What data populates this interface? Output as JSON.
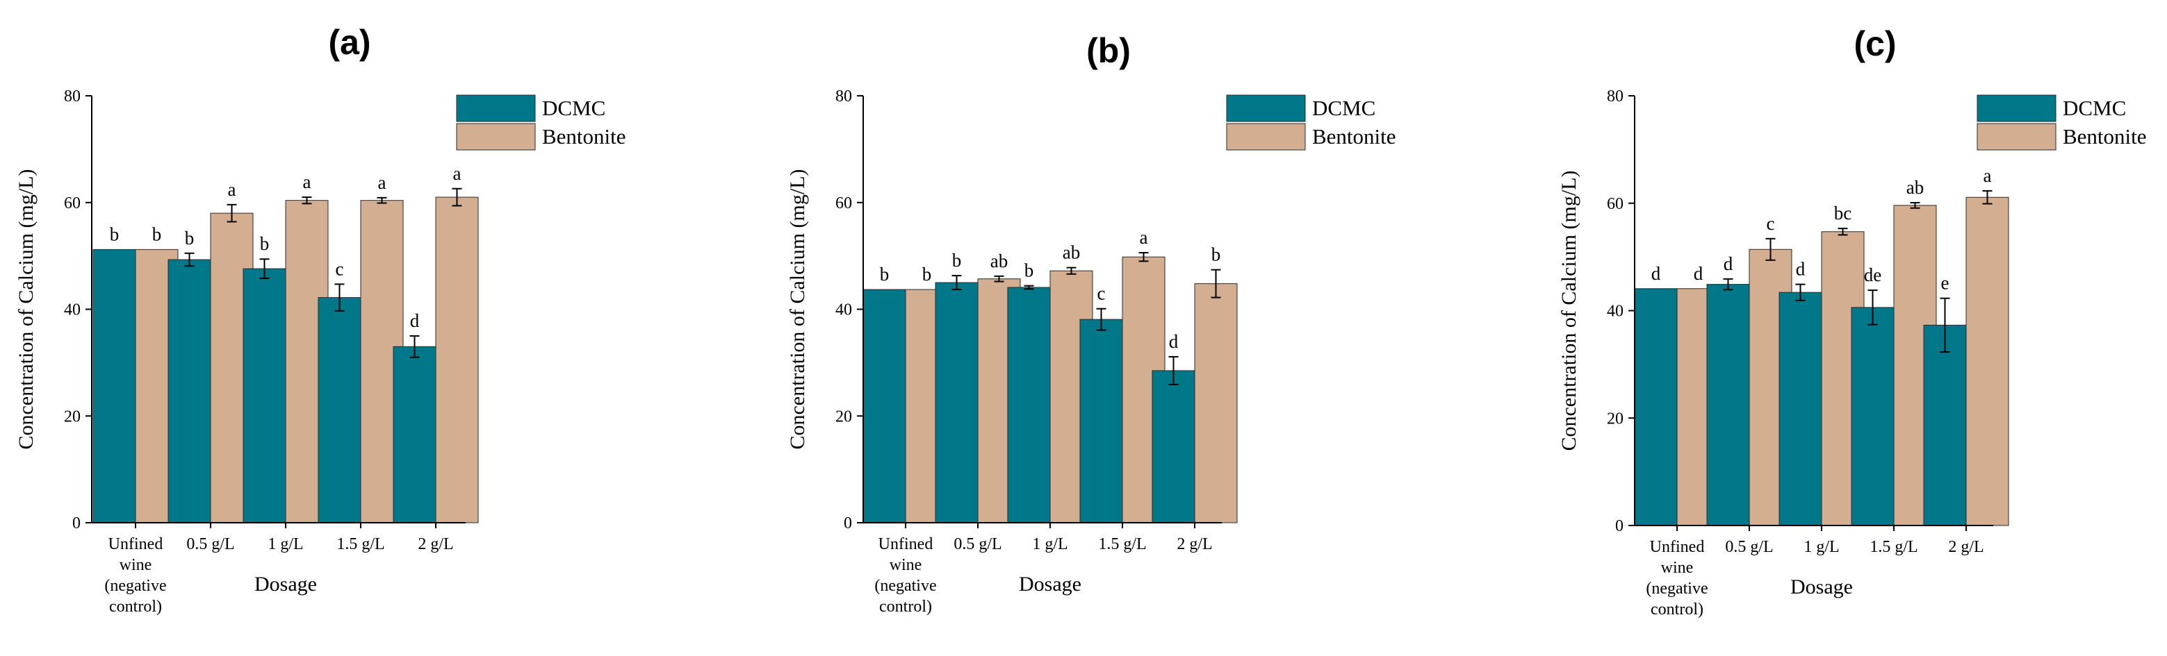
{
  "colors": {
    "DCMC": "#00788a",
    "Bentonite": "#d3ae91"
  },
  "chart_data": [
    {
      "type": "bar",
      "title": "(a)",
      "xlabel": "Dosage",
      "ylabel": "Concentration of Calcium (mg/L)",
      "ylim": [
        0,
        80
      ],
      "yticks": [
        "0",
        "20",
        "40",
        "60",
        "80"
      ],
      "legend_position": "top-right",
      "categories": [
        [
          "Unfined",
          "wine",
          "(negative",
          "control)"
        ],
        [
          "0.5 g/L"
        ],
        [
          "1 g/L"
        ],
        [
          "1.5 g/L"
        ],
        [
          "2 g/L"
        ]
      ],
      "series": [
        {
          "name": "DCMC",
          "values": [
            51.2,
            49.3,
            47.6,
            42.2,
            33.0
          ],
          "errors": [
            0,
            1.2,
            1.8,
            2.5,
            2.0
          ],
          "labels": [
            "b",
            "b",
            "b",
            "c",
            "d"
          ]
        },
        {
          "name": "Bentonite",
          "values": [
            51.2,
            58.0,
            60.4,
            60.4,
            61.0
          ],
          "errors": [
            0,
            1.6,
            0.6,
            0.5,
            1.6
          ],
          "labels": [
            "b",
            "a",
            "a",
            "a",
            "a"
          ]
        }
      ]
    },
    {
      "type": "bar",
      "title": "(b)",
      "xlabel": "Dosage",
      "ylabel": "Concentration of Calcium (mg/L)",
      "ylim": [
        0,
        80
      ],
      "yticks": [
        "0",
        "20",
        "40",
        "60",
        "80"
      ],
      "legend_position": "top-right",
      "categories": [
        [
          "Unfined",
          "wine",
          "(negative",
          "control)"
        ],
        [
          "0.5 g/L"
        ],
        [
          "1 g/L"
        ],
        [
          "1.5 g/L"
        ],
        [
          "2 g/L"
        ]
      ],
      "series": [
        {
          "name": "DCMC",
          "values": [
            43.7,
            45.0,
            44.1,
            38.1,
            28.5
          ],
          "errors": [
            0,
            1.3,
            0.3,
            2.0,
            2.6
          ],
          "labels": [
            "b",
            "b",
            "b",
            "c",
            "d"
          ]
        },
        {
          "name": "Bentonite",
          "values": [
            43.7,
            45.7,
            47.2,
            49.8,
            44.8
          ],
          "errors": [
            0,
            0.5,
            0.6,
            0.8,
            2.6
          ],
          "labels": [
            "b",
            "ab",
            "ab",
            "a",
            "b"
          ]
        }
      ]
    },
    {
      "type": "bar",
      "title": "(c)",
      "xlabel": "Dosage",
      "ylabel": "Concentration of Calcium (mg/L)",
      "ylim": [
        0,
        80
      ],
      "yticks": [
        "0",
        "20",
        "40",
        "60",
        "80"
      ],
      "legend_position": "top-right",
      "categories": [
        [
          "Unfined",
          "wine",
          "(negative",
          "control)"
        ],
        [
          "0.5 g/L"
        ],
        [
          "1 g/L"
        ],
        [
          "1.5 g/L"
        ],
        [
          "2 g/L"
        ]
      ],
      "series": [
        {
          "name": "DCMC",
          "values": [
            44.1,
            44.9,
            43.4,
            40.6,
            37.3
          ],
          "errors": [
            0,
            1.0,
            1.5,
            3.2,
            5.0
          ],
          "labels": [
            "d",
            "d",
            "d",
            "de",
            "e"
          ]
        },
        {
          "name": "Bentonite",
          "values": [
            44.1,
            51.4,
            54.7,
            59.6,
            61.1
          ],
          "errors": [
            0,
            2.0,
            0.6,
            0.5,
            1.2
          ],
          "labels": [
            "d",
            "c",
            "bc",
            "ab",
            "a"
          ]
        }
      ]
    }
  ]
}
